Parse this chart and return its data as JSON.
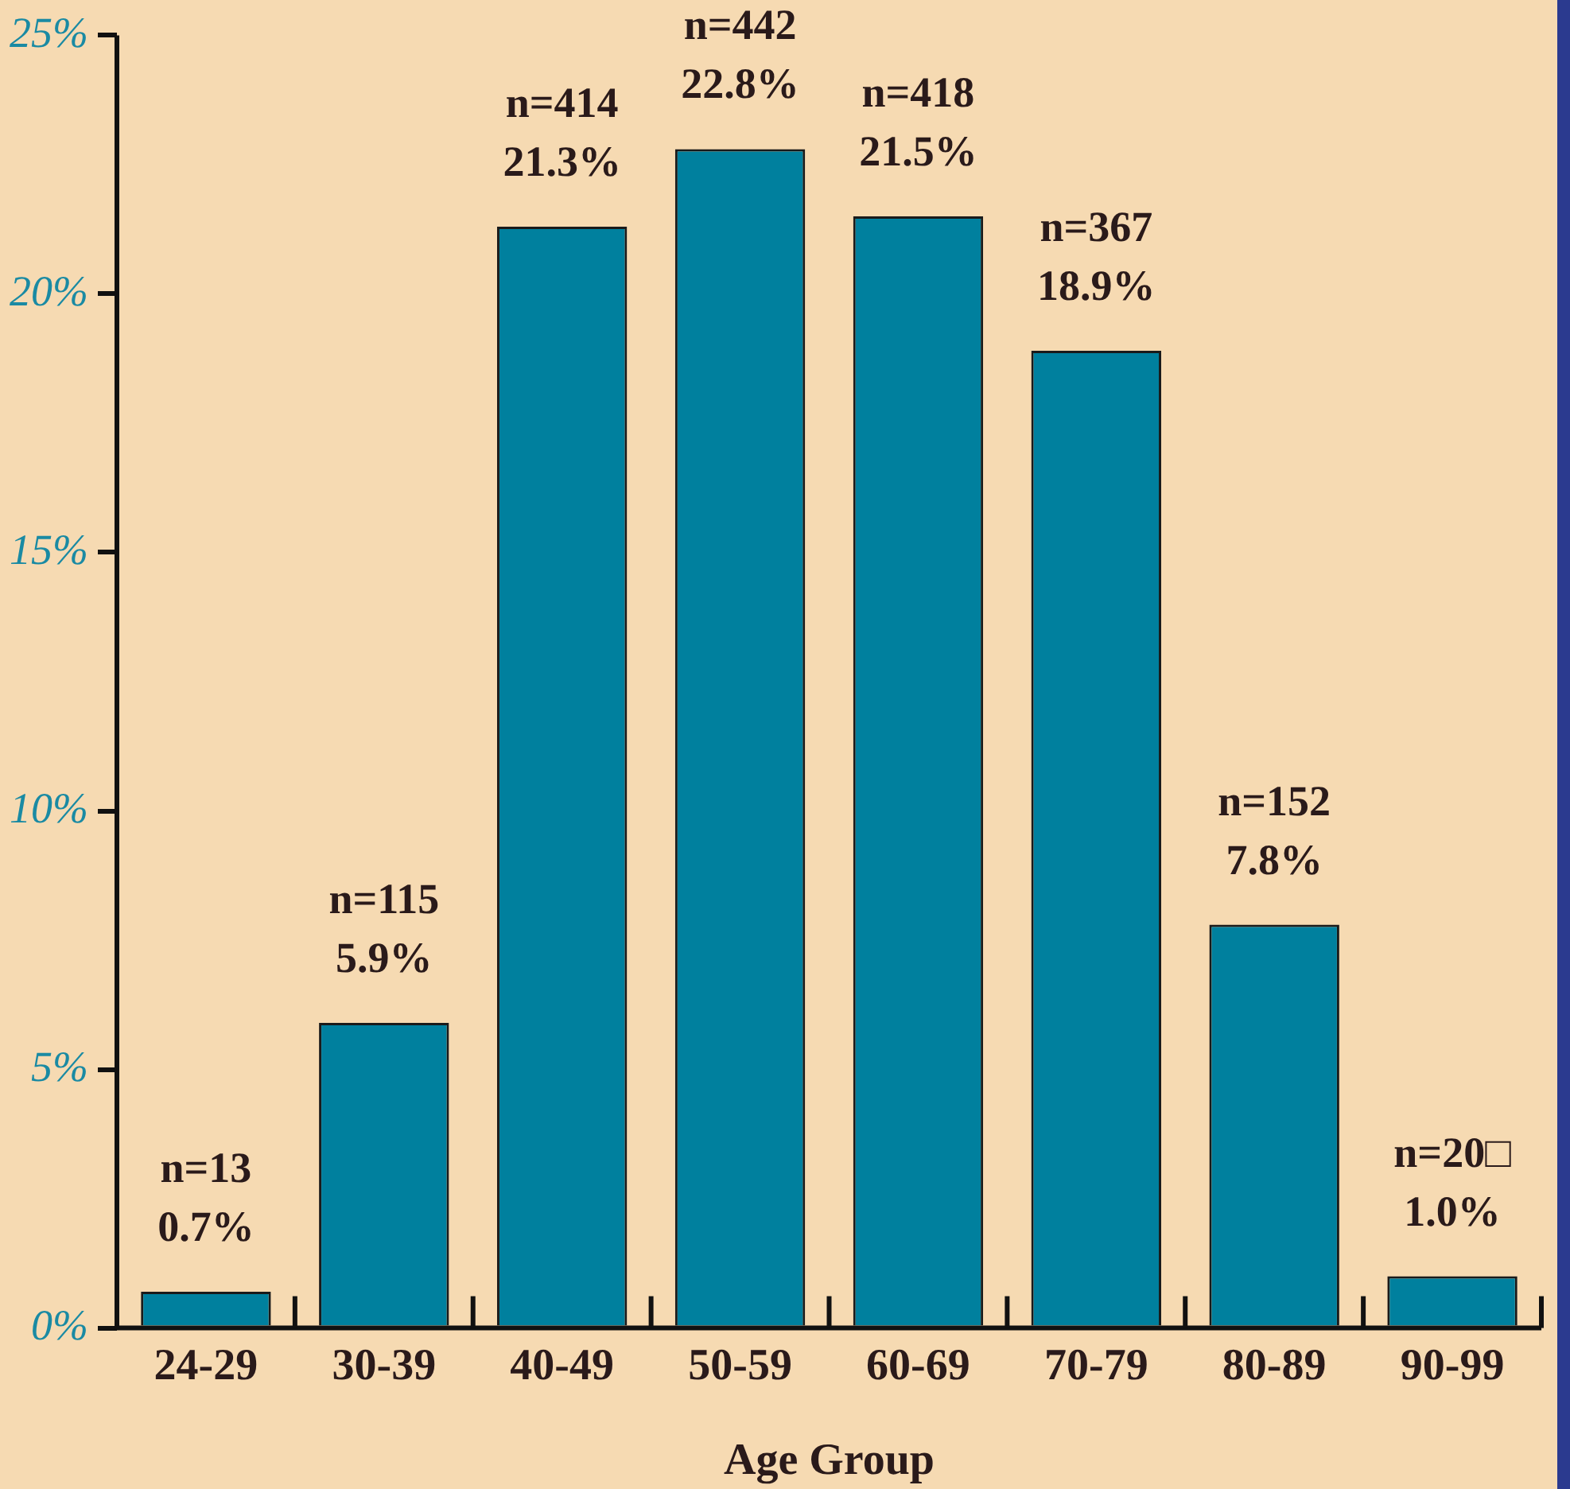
{
  "chart_data": {
    "type": "bar",
    "xlabel": "Age Group",
    "categories": [
      "24-29",
      "30-39",
      "40-49",
      "50-59",
      "60-69",
      "70-79",
      "80-89",
      "90-99"
    ],
    "values": [
      0.7,
      5.9,
      21.3,
      22.8,
      21.5,
      18.9,
      7.8,
      1.0
    ],
    "value_labels": [
      "n=13\n0.7%",
      "n=115\n5.9%",
      "n=414\n21.3%",
      "n=442\n22.8%",
      "n=418\n21.5%",
      "n=367\n18.9%",
      "n=152\n7.8%",
      "n=20□\n1.0%"
    ],
    "color": "#00809e",
    "ylim": [
      0,
      25
    ],
    "yticks": [
      {
        "value": 0,
        "label": "0%"
      },
      {
        "value": 5,
        "label": "5%"
      },
      {
        "value": 10,
        "label": "10%"
      },
      {
        "value": 15,
        "label": "15%"
      },
      {
        "value": 20,
        "label": "20%"
      },
      {
        "value": 25,
        "label": "25%"
      }
    ],
    "grid": false,
    "legend": false
  }
}
